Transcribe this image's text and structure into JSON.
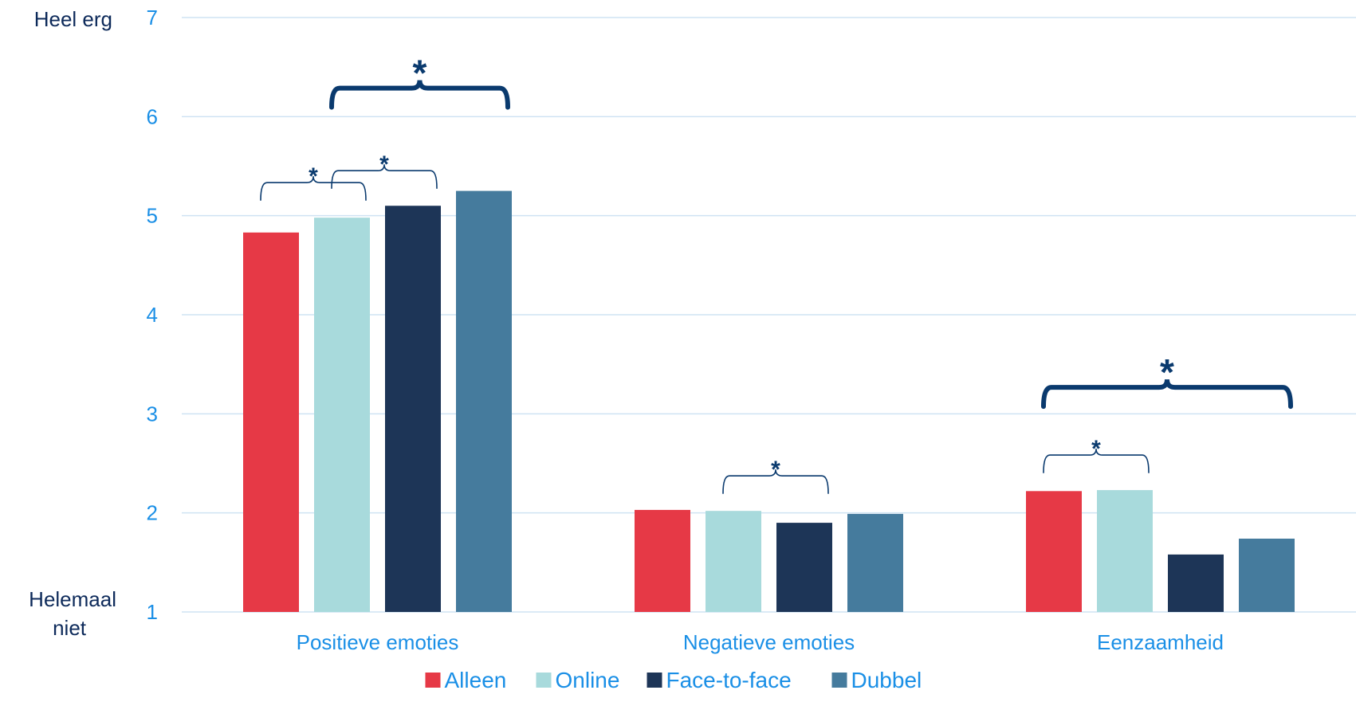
{
  "chart_data": {
    "type": "bar",
    "categories": [
      "Positieve emoties",
      "Negatieve emoties",
      "Eenzaamheid"
    ],
    "series": [
      {
        "name": "Alleen",
        "values": [
          4.83,
          2.03,
          2.22
        ],
        "color": "#e63946"
      },
      {
        "name": "Online",
        "values": [
          4.98,
          2.02,
          2.23
        ],
        "color": "#a8dadc"
      },
      {
        "name": "Face-to-face",
        "values": [
          5.1,
          1.9,
          1.58
        ],
        "color": "#1d3557"
      },
      {
        "name": "Dubbel",
        "values": [
          5.25,
          1.99,
          1.74
        ],
        "color": "#457b9d"
      }
    ],
    "ylim": [
      1,
      7
    ],
    "yticks": [
      1,
      2,
      3,
      4,
      5,
      6,
      7
    ],
    "y_anchor_top": "Heel erg",
    "y_anchor_bottom": [
      "Helemaal",
      "niet"
    ],
    "grid": true,
    "legend_position": "bottom",
    "significance": [
      {
        "category": 0,
        "from": 0,
        "to": 1,
        "label": "*",
        "emphasis": "small"
      },
      {
        "category": 0,
        "from": 1,
        "to": 2,
        "label": "*",
        "emphasis": "small"
      },
      {
        "category": 0,
        "from": 1,
        "to": 3,
        "label": "*",
        "emphasis": "large"
      },
      {
        "category": 1,
        "from": 1,
        "to": 2,
        "label": "*",
        "emphasis": "small"
      },
      {
        "category": 2,
        "from": 0,
        "to": 1,
        "label": "*",
        "emphasis": "small"
      },
      {
        "category": 2,
        "from": 0,
        "to": 3,
        "label": "*",
        "emphasis": "large"
      }
    ]
  }
}
